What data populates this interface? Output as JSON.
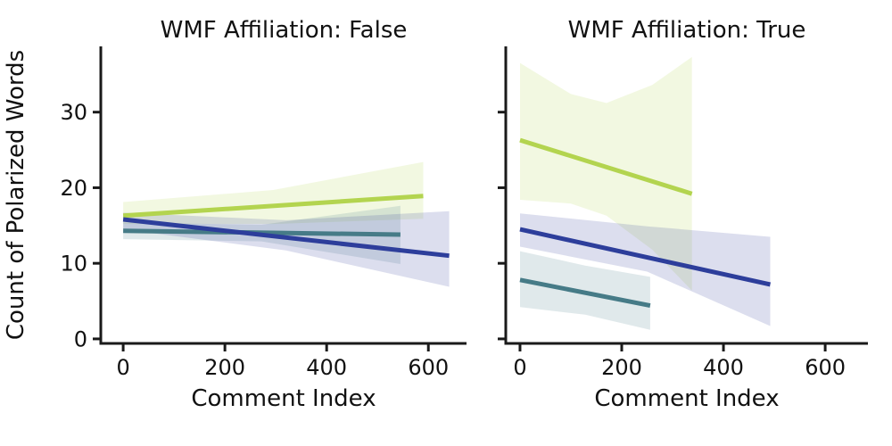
{
  "chart_data": {
    "type": "line",
    "description": "Faceted linear regression plot with confidence bands, three unlabeled series per facet",
    "xlabel": "Comment Index",
    "ylabel": "Count of Polarized Words",
    "x_ticks": [
      0,
      200,
      400,
      600
    ],
    "y_ticks": [
      0,
      10,
      20,
      30
    ],
    "ylim": [
      -0.6,
      38.7
    ],
    "grid": false,
    "legend": "none",
    "colors": {
      "green": "#b3d44f",
      "teal": "#467b87",
      "blue": "#2d3e9b",
      "axis": "#1a1a1a",
      "band_opacity": 0.17
    },
    "panels": [
      {
        "title": "WMF Affiliation: False",
        "xlim": [
          -44,
          675
        ],
        "series": [
          {
            "name": "green-series",
            "color_key": "green",
            "line": {
              "x": [
                0,
                590
              ],
              "y": [
                16.3,
                18.9
              ]
            },
            "band": {
              "x": [
                0,
                295,
                590
              ],
              "top": [
                18.1,
                19.7,
                23.4
              ],
              "bottom": [
                15.2,
                15.2,
                15.9
              ]
            }
          },
          {
            "name": "teal-series",
            "color_key": "teal",
            "line": {
              "x": [
                0,
                545
              ],
              "y": [
                14.3,
                13.8
              ]
            },
            "band": {
              "x": [
                0,
                272,
                545
              ],
              "top": [
                15.4,
                15.1,
                17.6
              ],
              "bottom": [
                13.2,
                12.9,
                9.9
              ]
            }
          },
          {
            "name": "blue-series",
            "color_key": "blue",
            "line": {
              "x": [
                0,
                641
              ],
              "y": [
                15.8,
                11.0
              ]
            },
            "band": {
              "x": [
                0,
                320,
                641
              ],
              "top": [
                16.7,
                15.7,
                16.9
              ],
              "bottom": [
                14.5,
                11.7,
                6.9
              ]
            }
          }
        ]
      },
      {
        "title": "WMF Affiliation: True",
        "xlim": [
          -28,
          684
        ],
        "series": [
          {
            "name": "green-series",
            "color_key": "green",
            "line": {
              "x": [
                0,
                338
              ],
              "y": [
                26.3,
                19.2
              ]
            },
            "band": {
              "x": [
                0,
                100,
                170,
                260,
                338
              ],
              "top": [
                36.5,
                32.4,
                31.2,
                33.6,
                37.3
              ],
              "bottom": [
                18.4,
                17.9,
                16.3,
                11.8,
                6.4
              ]
            }
          },
          {
            "name": "teal-series",
            "color_key": "teal",
            "line": {
              "x": [
                0,
                256
              ],
              "y": [
                7.8,
                4.4
              ]
            },
            "band": {
              "x": [
                0,
                128,
                256
              ],
              "top": [
                11.6,
                9.7,
                8.2
              ],
              "bottom": [
                4.2,
                3.2,
                1.2
              ]
            }
          },
          {
            "name": "blue-series",
            "color_key": "blue",
            "line": {
              "x": [
                0,
                492
              ],
              "y": [
                14.5,
                7.2
              ]
            },
            "band": {
              "x": [
                0,
                250,
                492
              ],
              "top": [
                16.6,
                14.9,
                13.5
              ],
              "bottom": [
                12.2,
                8.9,
                1.7
              ]
            }
          }
        ]
      }
    ]
  }
}
